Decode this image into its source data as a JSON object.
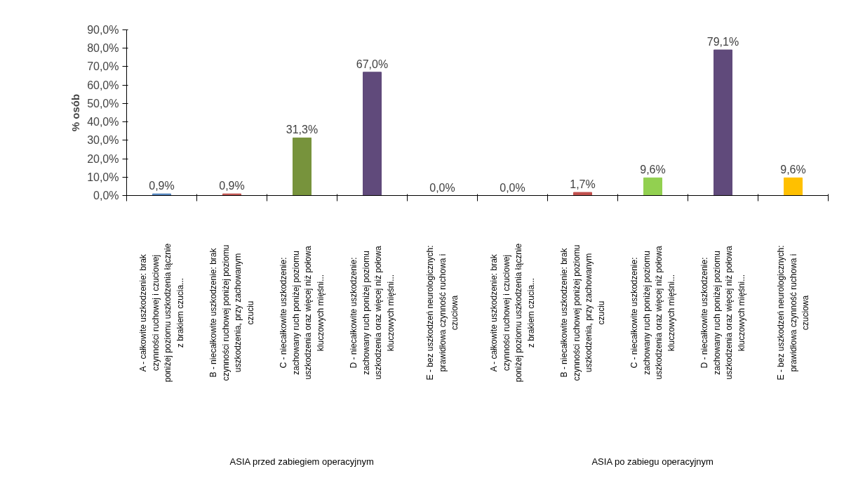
{
  "chart_data": {
    "type": "bar",
    "ylabel": "% osób",
    "categories": [
      "A - całkowite uszkodzenie: brak\nczynności ruchowej i czuciowej\nponiżej poziomu uszkodzenia łącznie\nz brakiem czucia...",
      "B - niecałkowite uszkodzenie: brak\nczynności ruchowej poniżej poziomu\nuszkodzenia, przy zachowanym\nczuciu",
      "C - niecałkowite uszkodzenie:\nzachowany ruch poniżej poziomu\nuszkodzenia oraz więcej niż połowa\nkluczowych mięśni...",
      "D - niecałkowite uszkodzenie:\nzachowany ruch poniżej poziomu\nuszkodzenia oraz więcej niż połowa\nkluczowych mięśni...",
      "E - bez uszkodzeń neurologicznych:\nprawidłowa czynność ruchowa i\nczuciowa",
      "A - całkowite uszkodzenie: brak\nczynności ruchowej i czuciowej\nponiżej poziomu uszkodzenia łącznie\nz brakiem czucia...",
      "B - niecałkowite uszkodzenie: brak\nczynności ruchowej poniżej poziomu\nuszkodzenia, przy zachowanym\nczuciu",
      "C - niecałkowite uszkodzenie:\nzachowany ruch poniżej poziomu\nuszkodzenia oraz więcej niż połowa\nkluczowych mięśni...",
      "D - niecałkowite uszkodzenie:\nzachowany ruch poniżej poziomu\nuszkodzenia oraz więcej niż połowa\nkluczowych mięśni...",
      "E - bez uszkodzeń neurologicznych:\nprawidłowa czynność ruchowa i\nczuciowa"
    ],
    "values": [
      0.9,
      0.9,
      31.3,
      67.0,
      0.0,
      0.0,
      1.7,
      9.6,
      79.1,
      9.6
    ],
    "value_labels": [
      "0,9%",
      "0,9%",
      "31,3%",
      "67,0%",
      "0,0%",
      "0,0%",
      "1,7%",
      "9,6%",
      "79,1%",
      "9,6%"
    ],
    "colors": [
      "#4f81bd",
      "#c0504d",
      "#77933c",
      "#604a7b",
      "#f79646",
      "#4f81bd",
      "#c0504d",
      "#92d050",
      "#604a7b",
      "#ffc000"
    ],
    "annotations": [
      "ASIA przed zabiegiem operacyjnym",
      "ASIA po zabiegu operacyjnym"
    ],
    "ylim": [
      0,
      90
    ],
    "yticks": [
      {
        "value": 0,
        "label": "0,0%"
      },
      {
        "value": 10,
        "label": "10,0%"
      },
      {
        "value": 20,
        "label": "20,0%"
      },
      {
        "value": 30,
        "label": "30,0%"
      },
      {
        "value": 40,
        "label": "40,0%"
      },
      {
        "value": 50,
        "label": "50,0%"
      },
      {
        "value": 60,
        "label": "60,0%"
      },
      {
        "value": 70,
        "label": "70,0%"
      },
      {
        "value": 80,
        "label": "80,0%"
      },
      {
        "value": 90,
        "label": "90,0%"
      }
    ],
    "grid": false
  }
}
